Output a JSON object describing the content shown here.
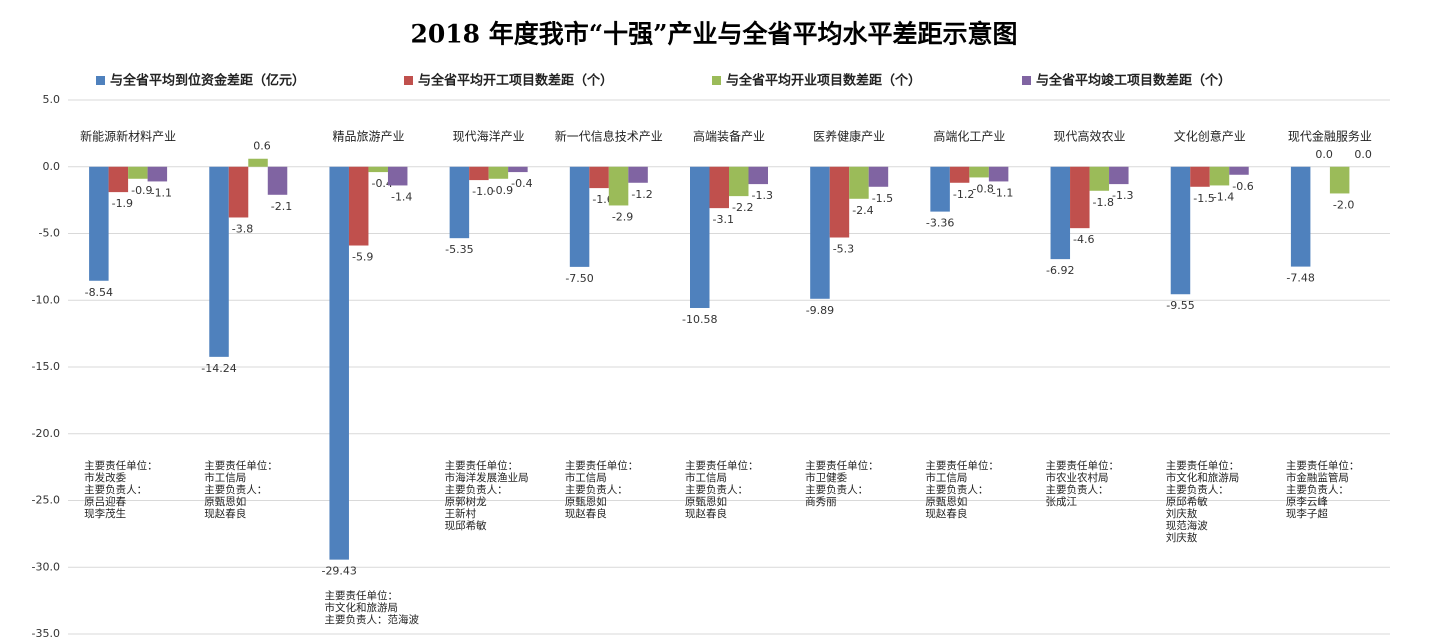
{
  "chart_data": {
    "type": "bar",
    "title": "2018 年度我市“十强”产业与全省平均水平差距示意图",
    "categories": [
      "新能源新材料产业",
      null,
      "精品旅游产业",
      "现代海洋产业",
      "新一代信息技术产业",
      "高端装备产业",
      "医养健康产业",
      "高端化工产业",
      "现代高效农业",
      "文化创意产业",
      "现代金融服务业"
    ],
    "series": [
      {
        "name": "与全省平均到位资金差距（亿元）",
        "color": "#4f81bd",
        "values": [
          -8.54,
          -14.24,
          -29.43,
          -5.35,
          -7.5,
          -10.58,
          -9.89,
          -3.36,
          -6.92,
          -9.55,
          -7.48
        ],
        "value_labels": [
          "-8.54",
          "-14.24",
          "-29.43",
          "-5.35",
          "-7.50",
          "-10.58",
          "-9.89",
          "-3.36",
          "-6.92",
          "-9.55",
          "-7.48"
        ]
      },
      {
        "name": "与全省平均开工项目数差距（个）",
        "color": "#c0504d",
        "values": [
          -1.9,
          -3.8,
          -5.9,
          -1.0,
          -1.6,
          -3.1,
          -5.3,
          -1.2,
          -4.6,
          -1.5,
          0.0
        ],
        "value_labels": [
          "-1.9",
          "-3.8",
          "-5.9",
          "-1.0",
          "-1.6",
          "-3.1",
          "-5.3",
          "-1.2",
          "-4.6",
          "-1.5",
          "0.0"
        ]
      },
      {
        "name": "与全省平均开业项目数差距（个）",
        "color": "#9bbb59",
        "values": [
          -0.9,
          0.6,
          -0.4,
          -0.9,
          -2.9,
          -2.2,
          -2.4,
          -0.8,
          -1.8,
          -1.4,
          -2.0
        ],
        "value_labels": [
          "-0.9",
          "0.6",
          "-0.4",
          "-0.9",
          "-2.9",
          "-2.2",
          "-2.4",
          "-0.8",
          "-1.8",
          "-1.4",
          "-2.0"
        ]
      },
      {
        "name": "与全省平均竣工项目数差距（个）",
        "color": "#8064a2",
        "values": [
          -1.1,
          -2.1,
          -1.4,
          -0.4,
          -1.2,
          -1.3,
          -1.5,
          -1.1,
          -1.3,
          -0.6,
          0.0
        ],
        "value_labels": [
          "-1.1",
          "-2.1",
          "-1.4",
          "-0.4",
          "-1.2",
          "-1.3",
          "-1.5",
          "-1.1",
          "-1.3",
          "-0.6",
          "0.0"
        ]
      }
    ],
    "ylim": [
      -35,
      5
    ],
    "yticks": [
      {
        "value": -35,
        "label": "-35.0"
      },
      {
        "value": -30,
        "label": "-30.0"
      },
      {
        "value": -25,
        "label": "-25.0"
      },
      {
        "value": -20,
        "label": "-20.0"
      },
      {
        "value": -15,
        "label": "-15.0"
      },
      {
        "value": -10,
        "label": "-10.0"
      },
      {
        "value": -5,
        "label": "-5.0"
      },
      {
        "value": 0,
        "label": "0.0"
      },
      {
        "value": 5,
        "label": "5.0"
      }
    ],
    "grid": true,
    "legend": "top",
    "notes": [
      [
        "主要责任单位：",
        "市发改委",
        "主要负责人：",
        "原吕迎春",
        "现李茂生"
      ],
      [
        "主要责任单位：",
        "市工信局",
        "主要负责人：",
        "原甄恩如",
        "现赵春良"
      ],
      [
        "主要责任单位：",
        "市文化和旅游局",
        "主要负责人：范海波"
      ],
      [
        "主要责任单位：",
        "市海洋发展渔业局",
        "主要负责人：",
        "原郭树龙",
        "王新村",
        "现邱希敏"
      ],
      [
        "主要责任单位：",
        "市工信局",
        "主要负责人：",
        "原甄恩如",
        "现赵春良"
      ],
      [
        "主要责任单位：",
        "市工信局",
        "主要负责人：",
        "原甄恩如",
        "现赵春良"
      ],
      [
        "主要责任单位：",
        "市卫健委",
        "主要负责人：",
        "商秀丽"
      ],
      [
        "主要责任单位：",
        "市工信局",
        "主要负责人：",
        "原甄恩如",
        "现赵春良"
      ],
      [
        "主要责任单位：",
        "市农业农村局",
        "主要负责人：",
        "张成江"
      ],
      [
        "主要责任单位：",
        "市文化和旅游局",
        "主要负责人：",
        "原邱希敏",
        "刘庆敖",
        "现范海波",
        "刘庆敖"
      ],
      [
        "主要责任单位：",
        "市金融监管局",
        "主要负责人：",
        "原李云峰",
        "现李子超"
      ]
    ]
  }
}
